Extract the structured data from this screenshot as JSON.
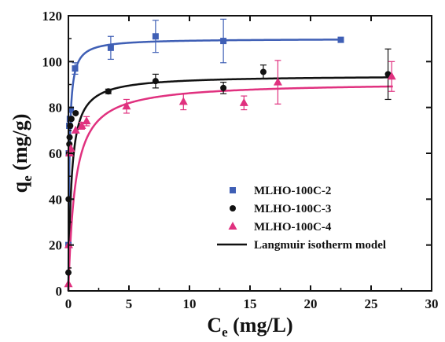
{
  "chart_data": {
    "type": "scatter",
    "xlabel": {
      "main": "C",
      "sub": "e",
      "unit": " (mg/L)"
    },
    "ylabel": {
      "main": "q",
      "sub": "e",
      "unit": " (mg/g)"
    },
    "xlim": [
      0,
      30
    ],
    "ylim": [
      0,
      120
    ],
    "xticks": [
      0,
      5,
      10,
      15,
      20,
      25,
      30
    ],
    "yticks": [
      0,
      20,
      40,
      60,
      80,
      100,
      120
    ],
    "grid": false,
    "legend_position": "bottom-right",
    "series": [
      {
        "name": "MLHO-100C-2",
        "marker": "square",
        "color": "#3f5fb5",
        "points": [
          {
            "x": 0.0,
            "y": 20.0
          },
          {
            "x": 0.03,
            "y": 60.0
          },
          {
            "x": 0.07,
            "y": 72.0
          },
          {
            "x": 0.12,
            "y": 75.0
          },
          {
            "x": 0.2,
            "y": 79.0
          },
          {
            "x": 0.55,
            "y": 97.0,
            "err": 2.5
          },
          {
            "x": 3.5,
            "y": 106.0,
            "err": 5.0
          },
          {
            "x": 7.2,
            "y": 111.0,
            "err": 7.0
          },
          {
            "x": 12.8,
            "y": 109.0,
            "err": 9.5
          },
          {
            "x": 22.5,
            "y": 109.5
          }
        ],
        "fit": {
          "qmax": 110.0,
          "KL": 12.0,
          "xmax": 22.6
        }
      },
      {
        "name": "MLHO-100C-3",
        "marker": "circle",
        "color": "#111111",
        "points": [
          {
            "x": 0.0,
            "y": 8.0
          },
          {
            "x": 0.02,
            "y": 40.0
          },
          {
            "x": 0.05,
            "y": 60.0
          },
          {
            "x": 0.08,
            "y": 64.0
          },
          {
            "x": 0.1,
            "y": 67.0
          },
          {
            "x": 0.15,
            "y": 72.0
          },
          {
            "x": 0.25,
            "y": 75.0
          },
          {
            "x": 0.6,
            "y": 77.5
          },
          {
            "x": 3.3,
            "y": 87.0,
            "err": 1.0
          },
          {
            "x": 7.2,
            "y": 91.5,
            "err": 3.0
          },
          {
            "x": 12.8,
            "y": 88.5,
            "err": 2.5
          },
          {
            "x": 16.1,
            "y": 95.5,
            "err": 3.0
          },
          {
            "x": 26.4,
            "y": 94.5,
            "err": 11.0
          }
        ],
        "fit": {
          "qmax": 94.0,
          "KL": 4.0,
          "xmax": 26.5
        }
      },
      {
        "name": "MLHO-100C-4",
        "marker": "triangle",
        "color": "#e0317f",
        "points": [
          {
            "x": 0.0,
            "y": 3.0
          },
          {
            "x": 0.03,
            "y": 20.0
          },
          {
            "x": 0.1,
            "y": 60.0
          },
          {
            "x": 0.2,
            "y": 62.0
          },
          {
            "x": 0.6,
            "y": 70.0
          },
          {
            "x": 1.1,
            "y": 72.0,
            "err": 1.5
          },
          {
            "x": 1.5,
            "y": 74.0,
            "err": 2.0
          },
          {
            "x": 4.8,
            "y": 80.5,
            "err": 3.0
          },
          {
            "x": 9.5,
            "y": 82.5,
            "err": 3.5
          },
          {
            "x": 14.5,
            "y": 82.0,
            "err": 3.0
          },
          {
            "x": 17.3,
            "y": 91.0,
            "err": 9.5
          },
          {
            "x": 26.7,
            "y": 93.5,
            "err": 6.5
          }
        ],
        "fit": {
          "qmax": 91.0,
          "KL": 1.8,
          "xmax": 26.8
        }
      }
    ],
    "legend": [
      {
        "label": "MLHO-100C-2",
        "marker": "square",
        "color": "#3f5fb5"
      },
      {
        "label": "MLHO-100C-3",
        "marker": "circle",
        "color": "#111111"
      },
      {
        "label": "MLHO-100C-4",
        "marker": "triangle",
        "color": "#e0317f"
      },
      {
        "label": "Langmuir isotherm model",
        "marker": "line",
        "color": "#111111"
      }
    ]
  }
}
